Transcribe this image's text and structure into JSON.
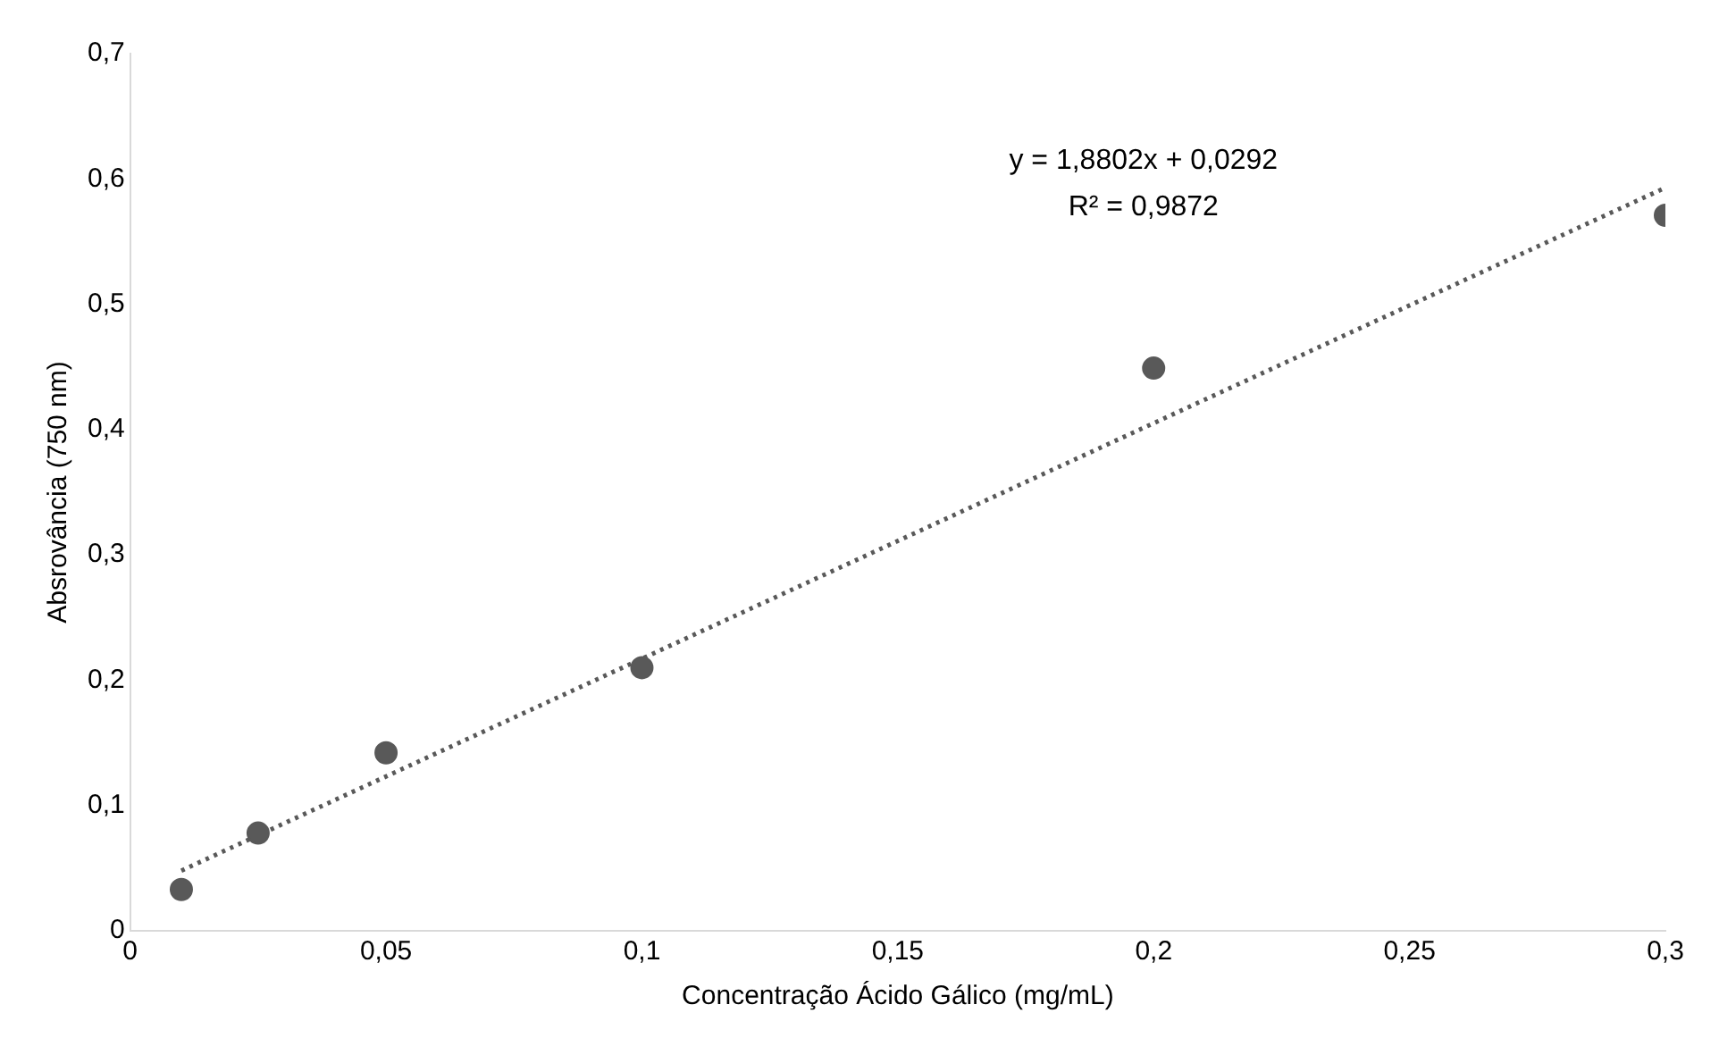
{
  "chart_data": {
    "type": "scatter",
    "xlabel": "Concentração Ácido Gálico (mg/mL)",
    "ylabel": "Absrovância (750 nm)",
    "xlim": [
      0,
      0.3
    ],
    "xticks": [
      0,
      {
        "value": 0.05,
        "label": "0,05"
      },
      {
        "value": 0.1,
        "label": "0,1"
      },
      {
        "value": 0.15,
        "label": "0,15"
      },
      {
        "value": 0.2,
        "label": "0,2"
      },
      {
        "value": 0.25,
        "label": "0,25"
      },
      {
        "value": 0.3,
        "label": "0,3"
      }
    ],
    "ylim": [
      0,
      0.7
    ],
    "yticks": [
      0,
      {
        "value": 0.1,
        "label": "0,1"
      },
      {
        "value": 0.2,
        "label": "0,2"
      },
      {
        "value": 0.3,
        "label": "0,3"
      },
      {
        "value": 0.4,
        "label": "0,4"
      },
      {
        "value": 0.5,
        "label": "0,5"
      },
      {
        "value": 0.6,
        "label": "0,6"
      },
      {
        "value": 0.7,
        "label": "0,7"
      }
    ],
    "grid": false,
    "legend": false,
    "series": [
      {
        "color": "#595959",
        "marker": "circle",
        "x": [
          0.01,
          0.025,
          0.05,
          0.1,
          0.2,
          0.3
        ],
        "values": [
          0.033,
          0.078,
          0.142,
          0.21,
          0.449,
          0.571
        ]
      },
      {
        "type": "line",
        "color": "#595959",
        "marker": "none",
        "line_style": "dotted",
        "x": [
          0.01,
          0.3
        ],
        "values": [
          0.048,
          0.593
        ]
      }
    ],
    "annotations": [
      "y = 1,8802x + 0,0292",
      "R² = 0,9872"
    ]
  }
}
